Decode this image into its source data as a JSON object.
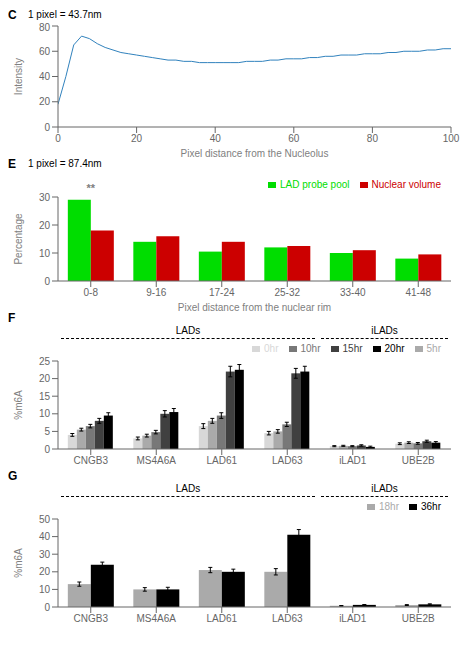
{
  "chart_data": [
    {
      "type": "line",
      "title": "C",
      "xlabel": "Pixel distance from the Nucleolus",
      "ylabel": "Intensity",
      "annotations": [
        "1 pixel = 43.7nm"
      ],
      "x": [
        0,
        2,
        4,
        6,
        8,
        10,
        12,
        14,
        16,
        18,
        20,
        22,
        24,
        26,
        28,
        30,
        32,
        34,
        36,
        38,
        40,
        42,
        44,
        46,
        48,
        50,
        52,
        54,
        56,
        58,
        60,
        62,
        64,
        66,
        68,
        70,
        72,
        74,
        76,
        78,
        80,
        82,
        84,
        86,
        88,
        90,
        92,
        94,
        96,
        98,
        100
      ],
      "values": [
        18,
        40,
        65,
        72,
        70,
        66,
        63,
        61,
        59,
        58,
        57,
        56,
        55,
        54,
        53,
        53,
        52,
        52,
        51,
        51,
        51,
        51,
        51,
        51,
        52,
        52,
        52,
        53,
        53,
        54,
        54,
        54,
        55,
        55,
        56,
        56,
        57,
        57,
        57,
        58,
        58,
        58,
        59,
        59,
        60,
        60,
        60,
        61,
        61,
        62,
        62
      ],
      "xlim": [
        0,
        100
      ],
      "ylim": [
        0,
        80
      ],
      "xticks": [
        0,
        20,
        40,
        60,
        80,
        100
      ],
      "yticks": [
        0,
        20,
        40,
        60,
        80
      ]
    },
    {
      "type": "bar",
      "title": "E",
      "xlabel": "Pixel distance from the nuclear rim",
      "ylabel": "Percentage",
      "annotations": [
        "**",
        "1 pixel = 87.4nm"
      ],
      "categories": [
        "0-8",
        "9-16",
        "17-24",
        "25-32",
        "33-40",
        "41-48"
      ],
      "series": [
        {
          "name": "LAD probe pool",
          "color": "#00dd00",
          "values": [
            29,
            14,
            10.5,
            12,
            10,
            8
          ]
        },
        {
          "name": "Nuclear volume",
          "color": "#cc0000",
          "values": [
            18,
            16,
            14,
            12.5,
            11,
            9.5
          ]
        }
      ],
      "ylim": [
        0,
        30
      ],
      "yticks": [
        0,
        5,
        10,
        15,
        20,
        25,
        30
      ],
      "legend": "upper right"
    },
    {
      "type": "bar",
      "title": "F",
      "ylabel": "%m6A",
      "annotations": [
        "LADs",
        "iLADs"
      ],
      "categories": [
        "CNGB3",
        "MS4A6A",
        "LAD61",
        "LAD63",
        "iLAD1",
        "UBE2B"
      ],
      "series": [
        {
          "name": "0hr",
          "color": "#d8d8d8",
          "values": [
            4.0,
            3.0,
            6.5,
            4.5,
            0.8,
            1.5
          ],
          "errors": [
            0.4,
            0.4,
            0.7,
            0.5,
            0.15,
            0.25
          ]
        },
        {
          "name": "5hr",
          "color": "#aaaaaa",
          "values": [
            5.5,
            3.8,
            8.0,
            5.0,
            0.9,
            1.8
          ],
          "errors": [
            0.4,
            0.4,
            0.7,
            0.5,
            0.15,
            0.25
          ]
        },
        {
          "name": "10hr",
          "color": "#787878",
          "values": [
            6.5,
            4.8,
            9.5,
            7.0,
            0.8,
            1.6
          ],
          "errors": [
            0.5,
            0.5,
            0.8,
            0.6,
            0.15,
            0.25
          ]
        },
        {
          "name": "15hr",
          "color": "#404040",
          "values": [
            8.0,
            10.0,
            22.0,
            21.5,
            1.0,
            2.2
          ],
          "errors": [
            0.7,
            0.9,
            1.5,
            1.4,
            0.2,
            0.3
          ]
        },
        {
          "name": "20hr",
          "color": "#000000",
          "values": [
            9.5,
            10.5,
            22.5,
            22.0,
            0.6,
            1.8
          ],
          "errors": [
            0.8,
            1.0,
            1.5,
            1.5,
            0.2,
            0.3
          ]
        }
      ],
      "ylim": [
        0,
        25
      ],
      "yticks": [
        0,
        5,
        10,
        15,
        20,
        25
      ],
      "legend": "upper right"
    },
    {
      "type": "bar",
      "title": "G",
      "ylabel": "%m6A",
      "annotations": [
        "LADs",
        "iLADs"
      ],
      "categories": [
        "CNGB3",
        "MS4A6A",
        "LAD61",
        "LAD63",
        "iLAD1",
        "UBE2B"
      ],
      "series": [
        {
          "name": "18hr",
          "color": "#aaaaaa",
          "values": [
            13,
            10,
            21,
            20,
            0.7,
            1.1
          ],
          "errors": [
            1.2,
            1.0,
            1.5,
            1.8,
            0.15,
            0.25
          ]
        },
        {
          "name": "36hr",
          "color": "#000000",
          "values": [
            24,
            10,
            20,
            41,
            1.2,
            1.5
          ],
          "errors": [
            1.5,
            1.2,
            1.5,
            3.0,
            0.2,
            0.3
          ]
        }
      ],
      "ylim": [
        0,
        50
      ],
      "yticks": [
        0,
        10,
        20,
        30,
        40,
        50
      ],
      "legend": "upper right"
    }
  ]
}
